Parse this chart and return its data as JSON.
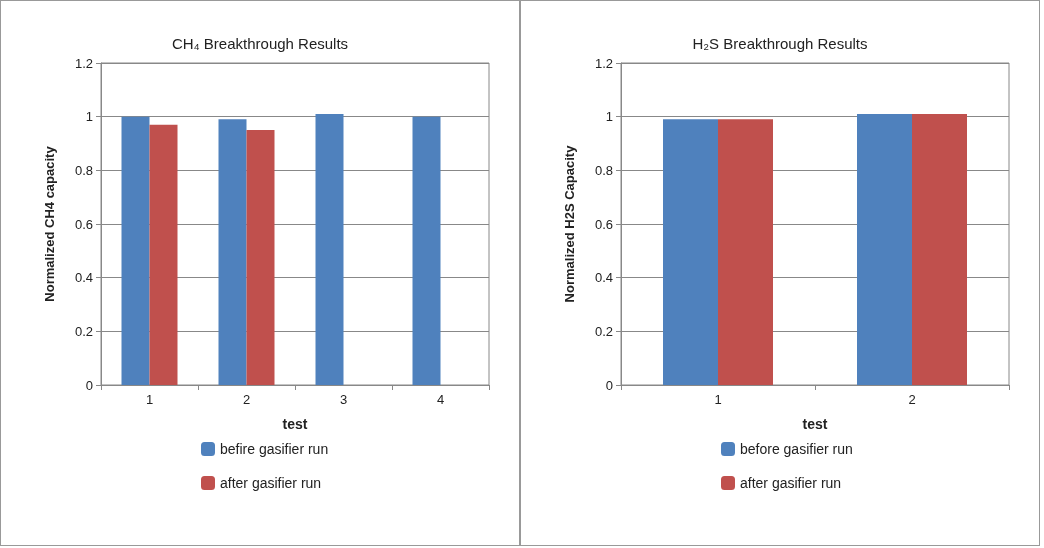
{
  "chart_data": [
    {
      "type": "bar",
      "title": "CH₄ Breakthrough Results",
      "xlabel": "test",
      "ylabel": "Normalized CH4 capacity",
      "categories": [
        "1",
        "2",
        "3",
        "4"
      ],
      "series": [
        {
          "name": "befire gasifier run",
          "color": "#4f81bd",
          "values": [
            1.0,
            0.99,
            1.01,
            1.0
          ]
        },
        {
          "name": "after gasifier run",
          "color": "#c0504d",
          "values": [
            0.97,
            0.95,
            null,
            null
          ]
        }
      ],
      "ylim": [
        0,
        1.2
      ],
      "yticks": [
        0,
        0.2,
        0.4,
        0.6,
        0.8,
        1,
        1.2
      ],
      "grid": "y",
      "legend": "bottom"
    },
    {
      "type": "bar",
      "title": "H₂S Breakthrough Results",
      "xlabel": "test",
      "ylabel": "Normalized H2S Capacity",
      "categories": [
        "1",
        "2"
      ],
      "series": [
        {
          "name": "before gasifier run",
          "color": "#4f81bd",
          "values": [
            0.99,
            1.01
          ]
        },
        {
          "name": "after gasifier run",
          "color": "#c0504d",
          "values": [
            0.99,
            1.01
          ]
        }
      ],
      "ylim": [
        0,
        1.2
      ],
      "yticks": [
        0,
        0.2,
        0.4,
        0.6,
        0.8,
        1,
        1.2
      ],
      "grid": "y",
      "legend": "bottom"
    }
  ]
}
